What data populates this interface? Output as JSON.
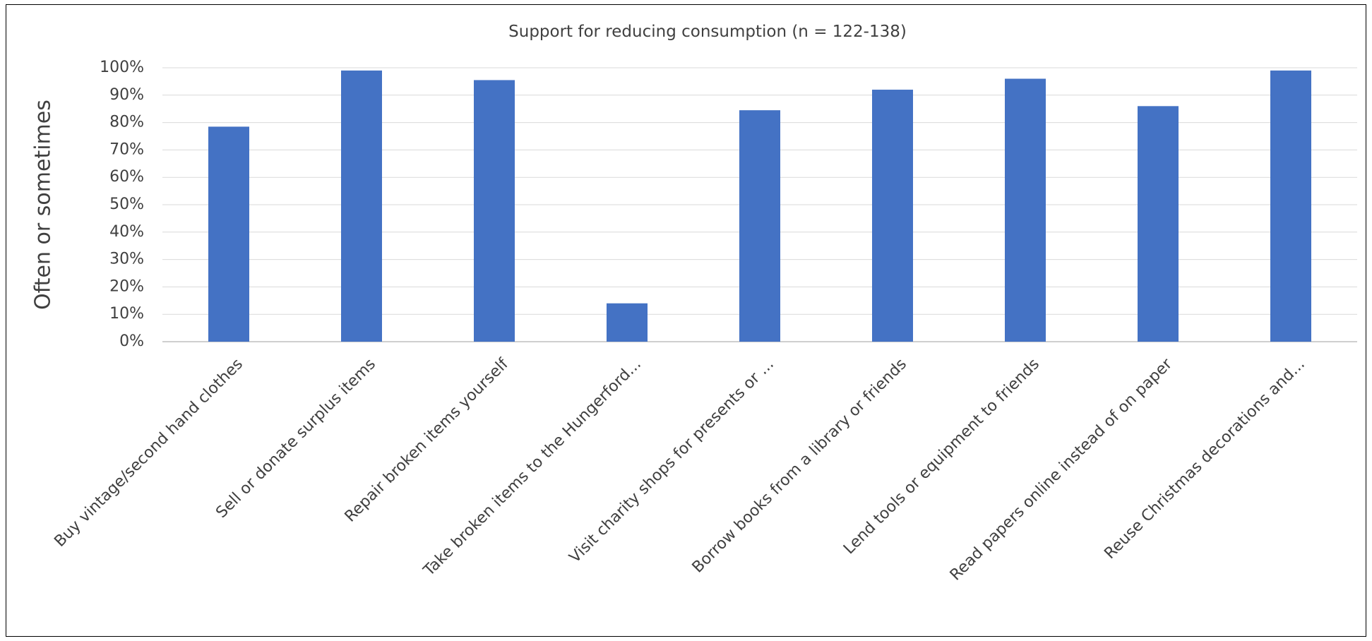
{
  "chart_data": {
    "type": "bar",
    "title": "Support for reducing consumption (n = 122-138)",
    "xlabel": "",
    "ylabel": "Often or sometimes",
    "ylim": [
      0,
      100
    ],
    "yticks": [
      "0%",
      "10%",
      "20%",
      "30%",
      "40%",
      "50%",
      "60%",
      "70%",
      "80%",
      "90%",
      "100%"
    ],
    "grid": true,
    "legend": "none",
    "bar_color": "#4472C4",
    "categories": [
      "Buy vintage/second hand clothes",
      "Sell or donate surplus items",
      "Repair broken items yourself",
      "Take broken items to the Hungerford...",
      "Visit charity shops for presents or ...",
      "Borrow books from a library or friends",
      "Lend tools or equipment to friends",
      "Read papers online instead of on paper",
      "Reuse Christmas decorations and..."
    ],
    "values": [
      78.5,
      99,
      95.5,
      14,
      84.5,
      92,
      96,
      86,
      99
    ]
  }
}
